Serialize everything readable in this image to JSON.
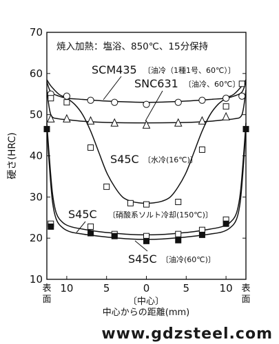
{
  "chart_data": {
    "type": "line",
    "condition": "焼入加熱：塩浴、850℃、15分保持",
    "xlabel_center": "〔中心〕",
    "xlabel": "中心からの距離(mm)",
    "ylabel": "硬さ(HRC)",
    "ylim": [
      10,
      70
    ],
    "yticks": [
      10,
      20,
      30,
      40,
      50,
      60,
      70
    ],
    "xlim": [
      -12.5,
      12.5
    ],
    "xticks": [
      {
        "x": -12.5,
        "label": "表面"
      },
      {
        "x": -10,
        "label": "10"
      },
      {
        "x": -5,
        "label": "5"
      },
      {
        "x": 0,
        "label": "0"
      },
      {
        "x": 5,
        "label": "5"
      },
      {
        "x": 10,
        "label": "10"
      },
      {
        "x": 12.5,
        "label": "表面"
      }
    ],
    "series": [
      {
        "name": "SCM435",
        "detail": "〔油冷（1種1号、60℃）〕",
        "marker": "circle",
        "curve_x": [
          -12.5,
          -12,
          -11,
          -10,
          -8,
          -5,
          0,
          5,
          8,
          10,
          11,
          12,
          12.5
        ],
        "curve_y": [
          58,
          55.5,
          54.5,
          54,
          53.7,
          53.3,
          53,
          53.3,
          53.7,
          54,
          54.5,
          55.5,
          58
        ],
        "points": [
          [
            -12,
            55
          ],
          [
            -10,
            54.5
          ],
          [
            -7,
            53.5
          ],
          [
            -4,
            53
          ],
          [
            0,
            52.5
          ],
          [
            4,
            53
          ],
          [
            7,
            53.5
          ],
          [
            10,
            54
          ],
          [
            12,
            54.5
          ]
        ]
      },
      {
        "name": "SNC631",
        "detail": "〔油冷、60℃〕",
        "marker": "triangle",
        "curve_x": [
          -12.5,
          -12,
          -11,
          -10,
          -8,
          -5,
          0,
          5,
          8,
          10,
          11,
          12,
          12.5
        ],
        "curve_y": [
          56,
          50,
          49,
          48.8,
          48.4,
          48.1,
          48,
          48.1,
          48.4,
          48.8,
          49,
          50,
          56
        ],
        "points": [
          [
            -12,
            49
          ],
          [
            -10,
            49
          ],
          [
            -7,
            48.5
          ],
          [
            -4,
            48
          ],
          [
            0,
            47.5
          ],
          [
            4,
            48
          ],
          [
            7,
            48.5
          ],
          [
            10,
            49.5
          ]
        ]
      },
      {
        "name": "S45C",
        "detail": "〔水冷(16℃)〕",
        "marker": "square-open",
        "curve_x": [
          -12.5,
          -12,
          -11,
          -10,
          -9,
          -8,
          -7,
          -6,
          -5,
          -4,
          -3,
          -2,
          -1,
          0,
          1,
          2,
          3,
          4,
          5,
          6,
          7,
          8,
          9,
          10,
          11,
          12,
          12.5
        ],
        "curve_y": [
          58.5,
          57,
          55,
          54,
          52.5,
          50,
          46,
          41,
          36,
          32.5,
          30,
          29,
          28.6,
          28.5,
          28.6,
          29,
          30,
          32.5,
          36,
          41,
          46,
          50,
          52.5,
          54,
          55,
          57,
          58.5
        ],
        "points": [
          [
            -12,
            54
          ],
          [
            -10,
            53
          ],
          [
            -7,
            42
          ],
          [
            -5,
            32.5
          ],
          [
            -2,
            28.5
          ],
          [
            0,
            28.2
          ],
          [
            4,
            28.8
          ],
          [
            7,
            41.5
          ],
          [
            10,
            52
          ],
          [
            12,
            57.5
          ]
        ]
      },
      {
        "name": "S45C",
        "detail": "〔硝酸系ソルト冷却(150℃)〕",
        "marker": "square-open",
        "curve_x": [
          -12.5,
          -12.2,
          -11.8,
          -11.3,
          -10.5,
          -9.5,
          -8,
          -6,
          -4,
          -2,
          0,
          2,
          4,
          6,
          8,
          9.5,
          10.5,
          11.3,
          11.8,
          12.2,
          12.5
        ],
        "curve_y": [
          48,
          40,
          31,
          26,
          23.8,
          22.8,
          22.2,
          21.6,
          21.2,
          20.9,
          20.8,
          20.9,
          21.2,
          21.6,
          22.2,
          22.8,
          23.8,
          26,
          31,
          40,
          48
        ],
        "points": [
          [
            -12,
            23.5
          ],
          [
            -7,
            22.8
          ],
          [
            -4,
            21
          ],
          [
            0,
            20.5
          ],
          [
            4,
            21
          ],
          [
            7,
            22
          ],
          [
            10,
            24.5
          ]
        ]
      },
      {
        "name": "S45C",
        "detail": "〔油冷(60℃)〕",
        "marker": "square-filled",
        "curve_x": [
          -12.5,
          -12.2,
          -11.8,
          -11.3,
          -10.5,
          -9.5,
          -8,
          -6,
          -4,
          -2,
          0,
          2,
          4,
          6,
          8,
          9.5,
          10.5,
          11.3,
          11.8,
          12.2,
          12.5
        ],
        "curve_y": [
          47,
          38,
          29,
          24.5,
          22.5,
          21.5,
          21,
          20.5,
          20.1,
          19.8,
          19.7,
          19.8,
          20.1,
          20.5,
          21,
          21.5,
          22.5,
          24.5,
          29,
          38,
          47
        ],
        "points": [
          [
            -12.5,
            46.5
          ],
          [
            -12,
            22.8
          ],
          [
            -7,
            21.2
          ],
          [
            -4,
            20.5
          ],
          [
            0,
            19.3
          ],
          [
            4,
            19.5
          ],
          [
            7,
            20.8
          ],
          [
            10,
            23.5
          ],
          [
            12.5,
            46.5
          ]
        ]
      }
    ]
  },
  "labels": {
    "scm435_name": "SCM435",
    "scm435_detail": "〔油冷（1種1号、60℃）〕",
    "snc631_name": "SNC631",
    "snc631_detail": "〔油冷、60℃〕",
    "s45c_water_name": "S45C",
    "s45c_water_detail": "〔水冷(16℃)〕",
    "s45c_salt_name": "S45C",
    "s45c_salt_detail": "〔硝酸系ソルト冷却(150℃)〕",
    "s45c_oil_name": "S45C",
    "s45c_oil_detail": "〔油冷(60℃)〕"
  },
  "watermark": "www.gdzsteel.com"
}
